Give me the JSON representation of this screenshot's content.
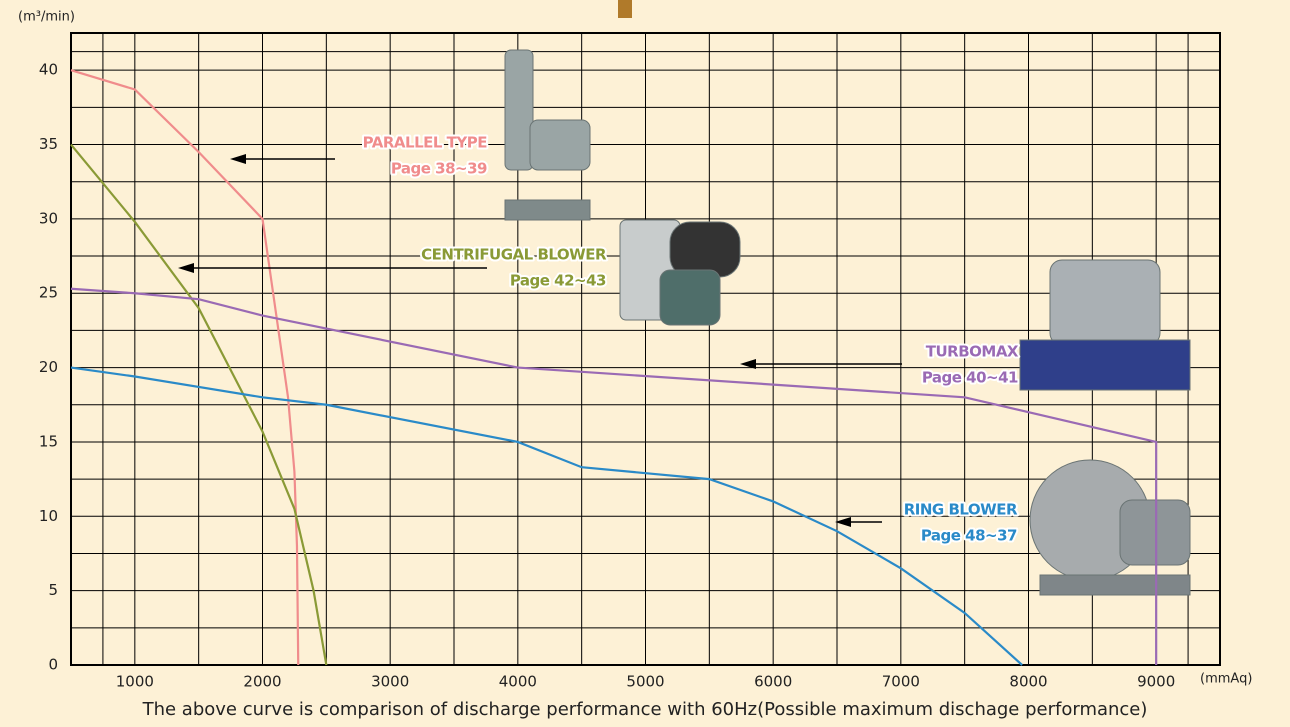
{
  "chart_data": {
    "type": "line",
    "x_unit": "(mmAq)",
    "y_unit": "(m³/min)",
    "caption": "The above curve is comparison of discharge performance with 60Hz(Possible maximum dischage performance)",
    "xlim": [
      500,
      9500
    ],
    "ylim": [
      0,
      42.5
    ],
    "xticks": [
      1000,
      2000,
      3000,
      4000,
      5000,
      6000,
      7000,
      8000,
      9000
    ],
    "yticks": [
      0,
      5,
      10,
      15,
      20,
      25,
      30,
      35,
      40
    ],
    "grid": true,
    "series": [
      {
        "name": "PARALLEL TYPE",
        "page": "Page 38~39",
        "color": "#f08c8c",
        "x": [
          500,
          1000,
          1500,
          2000,
          2100,
          2200,
          2250,
          2270,
          2280
        ],
        "values": [
          40,
          38.7,
          34.5,
          30,
          24,
          18,
          13,
          8,
          0
        ]
      },
      {
        "name": "CENTRIFUGAL BLOWER",
        "page": "Page 42~43",
        "color": "#8a9a36",
        "x": [
          500,
          1000,
          1500,
          2000,
          2250,
          2400,
          2500
        ],
        "values": [
          35,
          29.8,
          24,
          15.7,
          10.5,
          5,
          0
        ]
      },
      {
        "name": "TURBOMAX",
        "page": "Page 40~41",
        "color": "#9a6ab4",
        "x": [
          500,
          1000,
          1500,
          2000,
          4000,
          7500,
          9000,
          9000
        ],
        "values": [
          25.3,
          25,
          24.6,
          23.5,
          20,
          18,
          15,
          0
        ]
      },
      {
        "name": "RING BLOWER",
        "page": "Page 48~37",
        "color": "#2a8ac8",
        "x": [
          500,
          1000,
          2000,
          2500,
          4000,
          4500,
          5500,
          6000,
          6500,
          7000,
          7500,
          7950
        ],
        "values": [
          20,
          19.4,
          18,
          17.5,
          15,
          13.3,
          12.5,
          11,
          9,
          6.5,
          3.5,
          0
        ]
      }
    ]
  }
}
